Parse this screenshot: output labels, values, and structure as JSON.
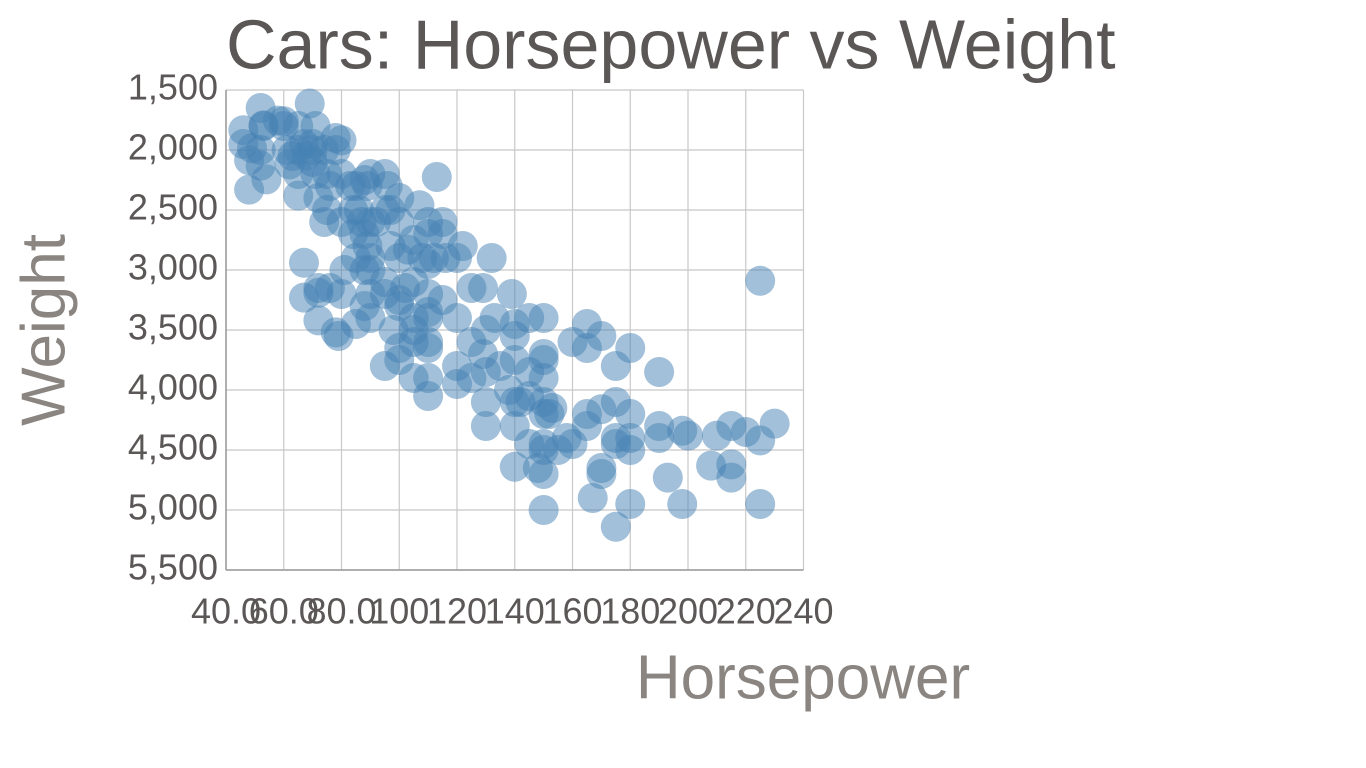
{
  "chart_data": {
    "type": "scatter",
    "title": "Cars: Horsepower vs Weight",
    "x_label": "Horsepower",
    "y_label": "Weight",
    "color": "#4682b4",
    "opacity": 0.5,
    "grid": true,
    "y_reversed": true,
    "xlim": [
      40,
      240
    ],
    "xticks": [
      {
        "value": 40,
        "label": "40.0"
      },
      {
        "value": 60,
        "label": "60.0"
      },
      {
        "value": 80,
        "label": "80.0"
      },
      100,
      120,
      140,
      160,
      180,
      200,
      220,
      240
    ],
    "ylim": [
      1500,
      5500
    ],
    "yticks": [
      {
        "value": 1500,
        "label": "1,500"
      },
      {
        "value": 2000,
        "label": "2,000"
      },
      {
        "value": 2500,
        "label": "2,500"
      },
      {
        "value": 3000,
        "label": "3,000"
      },
      {
        "value": 3500,
        "label": "3,500"
      },
      {
        "value": 4000,
        "label": "4,000"
      },
      {
        "value": 4500,
        "label": "4,500"
      },
      {
        "value": 5000,
        "label": "5,000"
      },
      {
        "value": 5500,
        "label": "5,500"
      }
    ],
    "x": [
      46,
      46,
      48,
      48,
      49,
      52,
      52,
      52,
      53,
      53,
      54,
      58,
      60,
      60,
      61,
      62,
      63,
      65,
      65,
      65,
      65,
      67,
      67,
      67,
      68,
      69,
      70,
      70,
      70,
      71,
      71,
      72,
      72,
      72,
      72,
      74,
      74,
      75,
      75,
      76,
      76,
      78,
      78,
      78,
      79,
      80,
      80,
      80,
      80,
      81,
      83,
      84,
      84,
      85,
      85,
      85,
      86,
      87,
      88,
      88,
      88,
      88,
      89,
      89,
      90,
      90,
      90,
      90,
      90,
      90,
      92,
      95,
      95,
      95,
      95,
      95,
      96,
      97,
      97,
      98,
      100,
      100,
      100,
      100,
      100,
      100,
      100,
      102,
      103,
      105,
      105,
      105,
      105,
      105,
      105,
      107,
      108,
      110,
      110,
      110,
      110,
      110,
      110,
      110,
      110,
      110,
      110,
      112,
      113,
      115,
      115,
      115,
      116,
      120,
      120,
      120,
      120,
      122,
      125,
      125,
      125,
      129,
      129,
      130,
      130,
      130,
      130,
      132,
      133,
      135,
      138,
      139,
      140,
      140,
      140,
      140,
      140,
      140,
      142,
      145,
      145,
      145,
      145,
      148,
      150,
      150,
      150,
      150,
      150,
      150,
      150,
      150,
      150,
      150,
      152,
      153,
      155,
      158,
      160,
      160,
      165,
      165,
      165,
      165,
      167,
      170,
      170,
      170,
      170,
      175,
      175,
      175,
      175,
      175,
      180,
      180,
      180,
      180,
      180,
      190,
      190,
      190,
      193,
      198,
      198,
      200,
      208,
      210,
      215,
      215,
      215,
      220,
      225,
      225,
      225,
      230
    ],
    "values": [
      1835,
      1950,
      2085,
      2330,
      1985,
      1650,
      2130,
      2000,
      1800,
      1795,
      2245,
      1755,
      1760,
      1800,
      2000,
      2120,
      2050,
      1800,
      2000,
      2200,
      2380,
      1950,
      2940,
      3230,
      2045,
      1613,
      2000,
      2100,
      1950,
      1800,
      2200,
      2400,
      3190,
      3150,
      3420,
      2000,
      2600,
      2200,
      2500,
      2300,
      3150,
      2000,
      1900,
      3520,
      3550,
      2200,
      2600,
      1920,
      3200,
      3000,
      2300,
      2500,
      2700,
      2300,
      2900,
      3450,
      2500,
      2600,
      2250,
      2700,
      3000,
      3300,
      2300,
      2800,
      2200,
      2600,
      3400,
      3200,
      2900,
      3000,
      2600,
      2200,
      2500,
      3100,
      3200,
      3800,
      2300,
      2500,
      2800,
      3500,
      2400,
      2600,
      2900,
      3300,
      3650,
      3750,
      3250,
      3150,
      2830,
      2750,
      3100,
      3400,
      3500,
      3600,
      3900,
      2460,
      2900,
      2600,
      2700,
      2950,
      3200,
      3350,
      3400,
      3600,
      3650,
      3900,
      4050,
      2900,
      2225,
      2600,
      2700,
      3250,
      2900,
      2900,
      3400,
      3800,
      3950,
      2800,
      3150,
      3600,
      3900,
      3150,
      3700,
      3500,
      3850,
      4100,
      4300,
      2900,
      3400,
      3800,
      4000,
      3200,
      3450,
      3550,
      3750,
      4100,
      4300,
      4640,
      4100,
      3400,
      3850,
      4050,
      4450,
      4650,
      3400,
      3700,
      3750,
      3900,
      4100,
      4200,
      4450,
      4500,
      4700,
      5000,
      4200,
      4150,
      4500,
      4400,
      3600,
      4450,
      3450,
      3650,
      4200,
      4300,
      4900,
      3550,
      4160,
      4650,
      4700,
      3800,
      4100,
      4400,
      4450,
      5140,
      3650,
      4200,
      4400,
      4500,
      4950,
      3850,
      4300,
      4400,
      4730,
      4340,
      4950,
      4380,
      4630,
      4380,
      4300,
      4620,
      4730,
      4350,
      3090,
      4420,
      4950,
      4280
    ]
  }
}
